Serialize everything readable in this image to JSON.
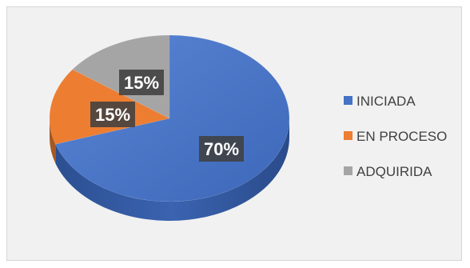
{
  "chart_data": {
    "type": "pie",
    "style": "3d",
    "categories": [
      "INICIADA",
      "EN PROCESO",
      "ADQUIRIDA"
    ],
    "values": [
      70,
      15,
      15
    ],
    "data_labels": [
      "70%",
      "15%",
      "15%"
    ],
    "colors": [
      "#4472C4",
      "#ED7D31",
      "#A5A5A5"
    ],
    "legend_position": "right",
    "title": ""
  }
}
